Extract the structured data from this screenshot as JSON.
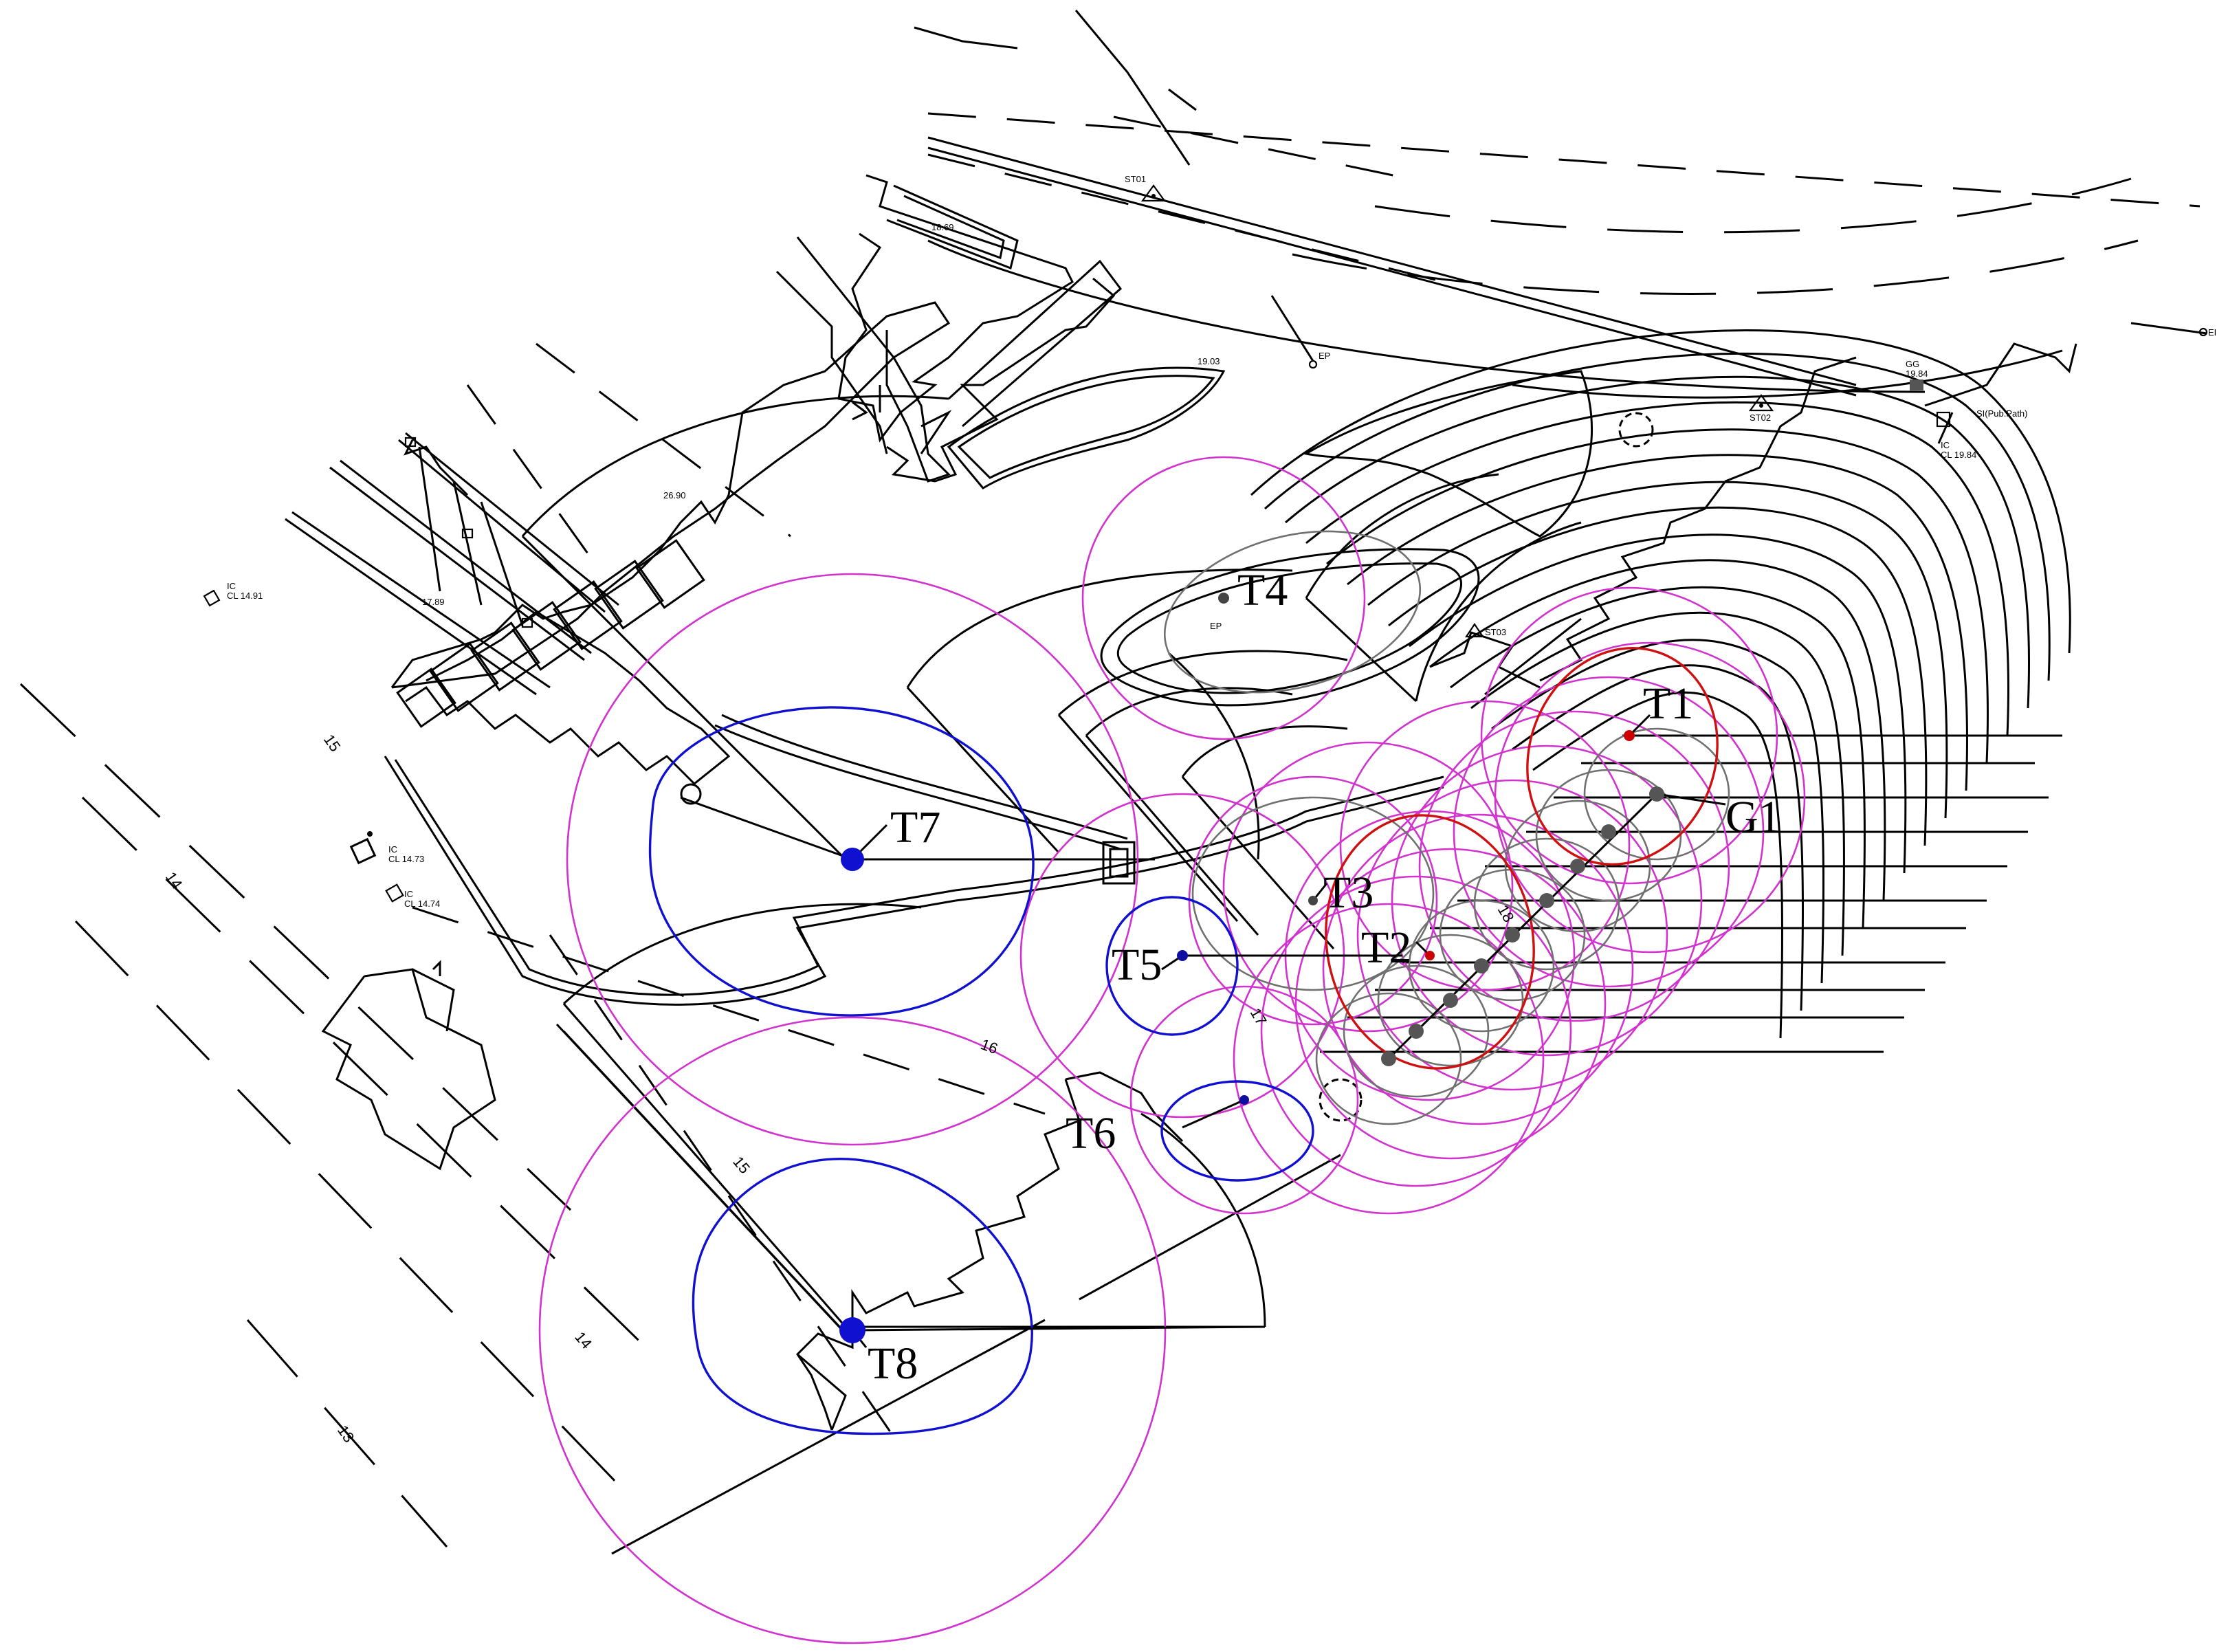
{
  "tree_labels": {
    "t1": "T1",
    "t2": "T2",
    "t3": "T3",
    "t4": "T4",
    "t5": "T5",
    "t6": "T6",
    "t7": "T7",
    "t8": "T8",
    "g1": "G1"
  },
  "survey_labels": {
    "st01": "ST01",
    "st02": "ST02",
    "st03": "ST03",
    "ep1": "EP",
    "ep2": "EP",
    "ep3": "EI",
    "gg": "GG",
    "gg_level": "19.84",
    "si_pub_path": "SI(Pub.Path)",
    "ic1_code": "IC",
    "ic1_level": "CL 14.91",
    "ic2_code": "IC",
    "ic2_level": "CL 14.73",
    "ic3_code": "IC",
    "ic3_level": "CL 14.74",
    "ic4_code": "IC",
    "ic4_level": "CL 19.84"
  },
  "level_labels": {
    "l1869": "18.69",
    "l1903": "19.03",
    "l2690": "26.90",
    "l1789": "17.89"
  },
  "contour_labels": {
    "c15a": "15",
    "c14a": "14",
    "c16": "16",
    "c15b": "15",
    "c14b": "14",
    "c13": "13",
    "c17": "17",
    "c18": "18"
  },
  "colors": {
    "rpa": "#d233cf",
    "canopy_blue": "#1010d0",
    "canopy_red": "#d01010",
    "canopy_grey": "#707070",
    "linework": "#000000"
  }
}
